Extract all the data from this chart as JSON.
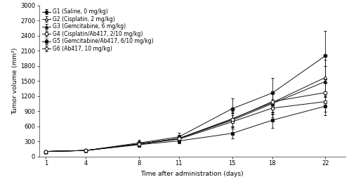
{
  "x": [
    1,
    4,
    8,
    11,
    15,
    18,
    22
  ],
  "groups": {
    "G1": {
      "label": "G1 (Saline, 0 mg/kg)",
      "y": [
        100,
        120,
        270,
        390,
        950,
        1260,
        2000
      ],
      "yerr": [
        15,
        20,
        60,
        80,
        200,
        300,
        500
      ],
      "marker": "o",
      "fillstyle": "full",
      "color": "#111111",
      "linestyle": "-"
    },
    "G2": {
      "label": "G2 (Cisplatin, 2 mg/kg)",
      "y": [
        100,
        120,
        250,
        360,
        750,
        1070,
        1570
      ],
      "yerr": [
        15,
        20,
        55,
        70,
        150,
        220,
        350
      ],
      "marker": "^",
      "fillstyle": "none",
      "color": "#111111",
      "linestyle": "-"
    },
    "G3": {
      "label": "G3 (Gemcitabine, 6 mg/kg)",
      "y": [
        100,
        120,
        250,
        360,
        720,
        1050,
        1490
      ],
      "yerr": [
        15,
        20,
        55,
        65,
        140,
        210,
        300
      ],
      "marker": "^",
      "fillstyle": "full",
      "color": "#111111",
      "linestyle": "-"
    },
    "G4": {
      "label": "G4 (Cisplatin/Ab417, 2/10 mg/kg)",
      "y": [
        100,
        120,
        245,
        345,
        690,
        960,
        1090
      ],
      "yerr": [
        15,
        20,
        50,
        60,
        130,
        180,
        200
      ],
      "marker": "s",
      "fillstyle": "none",
      "color": "#111111",
      "linestyle": "-"
    },
    "G5": {
      "label": "G5 (Gemcitabine/Ab417, 6/10 mg/kg)",
      "y": [
        100,
        120,
        235,
        310,
        460,
        720,
        1000
      ],
      "yerr": [
        15,
        15,
        45,
        55,
        100,
        150,
        180
      ],
      "marker": "s",
      "fillstyle": "full",
      "color": "#111111",
      "linestyle": "-"
    },
    "G6": {
      "label": "G6 (Ab417, 10 mg/kg)",
      "y": [
        100,
        120,
        250,
        355,
        740,
        1090,
        1270
      ],
      "yerr": [
        15,
        20,
        52,
        65,
        140,
        200,
        260
      ],
      "marker": "o",
      "fillstyle": "none",
      "color": "#111111",
      "linestyle": "-"
    }
  },
  "xlabel": "Time after administration (days)",
  "ylabel": "Tumor volume (mm³)",
  "ylim": [
    0,
    3000
  ],
  "yticks": [
    0,
    300,
    600,
    900,
    1200,
    1500,
    1800,
    2100,
    2400,
    2700,
    3000
  ],
  "xticks": [
    1,
    4,
    8,
    11,
    15,
    18,
    22
  ],
  "axis_fontsize": 6.5,
  "legend_fontsize": 5.5,
  "tick_fontsize": 6,
  "background_color": "#ffffff"
}
